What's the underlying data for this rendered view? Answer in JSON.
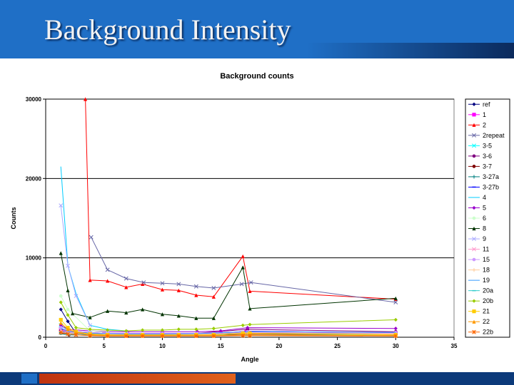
{
  "slide": {
    "title": "Background Intensity"
  },
  "chart_data": {
    "type": "line",
    "title": "Background counts",
    "xlabel": "Angle",
    "ylabel": "Counts",
    "xlim": [
      0,
      35
    ],
    "ylim": [
      0,
      30000
    ],
    "xticks": [
      0,
      5,
      10,
      15,
      20,
      25,
      30,
      35
    ],
    "yticks": [
      0,
      10000,
      20000,
      30000
    ],
    "grid": "horizontal",
    "legend_position": "right",
    "series": [
      {
        "name": "ref",
        "color": "#000080",
        "marker": "diamond",
        "x": [
          1.3,
          1.9,
          2.6
        ],
        "y": [
          3500,
          2000,
          500
        ]
      },
      {
        "name": "1",
        "color": "#ff00ff",
        "marker": "square",
        "x": [
          1.3,
          2,
          3.8,
          5,
          7,
          10,
          13,
          15,
          17.2,
          30
        ],
        "y": [
          1000,
          700,
          600,
          500,
          450,
          450,
          450,
          500,
          750,
          550
        ]
      },
      {
        "name": "2",
        "color": "#ff0000",
        "marker": "triangle",
        "x": [
          3.4,
          3.8,
          5.3,
          6.9,
          8.3,
          10,
          11.4,
          12.9,
          14.4,
          16.9,
          17.5,
          30
        ],
        "y": [
          30000,
          7200,
          7100,
          6300,
          6700,
          6000,
          5900,
          5300,
          5100,
          10200,
          5800,
          4800
        ]
      },
      {
        "name": "2repeat",
        "color": "#6666a6",
        "marker": "x",
        "x": [
          3.9,
          5.3,
          6.9,
          8.4,
          10,
          11.4,
          12.9,
          14.4,
          16.8,
          17.6,
          30
        ],
        "y": [
          12600,
          8500,
          7400,
          6900,
          6800,
          6700,
          6400,
          6200,
          6700,
          6900,
          4400
        ]
      },
      {
        "name": "3-5",
        "color": "#00ffff",
        "marker": "x",
        "x": [
          1.3,
          1.9,
          2.6,
          3.8,
          5.3
        ],
        "y": [
          1500,
          900,
          700,
          500,
          400
        ]
      },
      {
        "name": "3-6",
        "color": "#800080",
        "marker": "circle",
        "x": [
          1.3,
          2,
          3.8,
          5.3,
          7,
          10,
          13,
          17.3,
          30
        ],
        "y": [
          1000,
          800,
          600,
          500,
          400,
          400,
          500,
          1000,
          700
        ]
      },
      {
        "name": "3-7",
        "color": "#800000",
        "marker": "circle",
        "x": [
          1.3,
          2,
          3.8,
          5.3,
          7,
          10,
          13,
          17.3,
          30
        ],
        "y": [
          500,
          300,
          250,
          200,
          200,
          200,
          250,
          400,
          300
        ]
      },
      {
        "name": "3-27a",
        "color": "#008080",
        "marker": "plus",
        "x": [
          1.3,
          2,
          3.8,
          5.3,
          7,
          10,
          13,
          17.3,
          30
        ],
        "y": [
          600,
          450,
          350,
          300,
          300,
          300,
          350,
          500,
          400
        ]
      },
      {
        "name": "3-27b",
        "color": "#0000ff",
        "marker": "dash",
        "x": [
          1.3,
          2,
          3.8,
          5.3,
          7,
          10,
          13,
          15,
          17.3,
          30
        ],
        "y": [
          800,
          500,
          400,
          350,
          350,
          350,
          400,
          500,
          750,
          550
        ]
      },
      {
        "name": "4",
        "color": "#00ccff",
        "marker": "none",
        "x": [
          1.3,
          1.9,
          2.6,
          3.8,
          5.3,
          6.9
        ],
        "y": [
          21500,
          9000,
          5500,
          1500,
          1000,
          800
        ]
      },
      {
        "name": "5",
        "color": "#9900cc",
        "marker": "diamond",
        "x": [
          1.3,
          1.9,
          3.8,
          5.3,
          7,
          10,
          13,
          15,
          17.3,
          30
        ],
        "y": [
          1500,
          1000,
          800,
          700,
          700,
          700,
          700,
          800,
          1200,
          1100
        ]
      },
      {
        "name": "6",
        "color": "#ccffcc",
        "marker": "circle",
        "x": [
          1.3,
          1.9,
          3.8,
          5.3
        ],
        "y": [
          5200,
          3500,
          800,
          600
        ]
      },
      {
        "name": "8",
        "color": "#003300",
        "marker": "triangle",
        "x": [
          1.3,
          1.9,
          2.3,
          3.8,
          5.3,
          6.9,
          8.3,
          10,
          11.4,
          12.9,
          14.4,
          16.9,
          17.5,
          30
        ],
        "y": [
          10600,
          5900,
          3000,
          2500,
          3300,
          3100,
          3500,
          2900,
          2700,
          2400,
          2400,
          8800,
          3600,
          4900
        ]
      },
      {
        "name": "9",
        "color": "#aaaaff",
        "marker": "x",
        "x": [
          1.3,
          1.9,
          2.6,
          3.8
        ],
        "y": [
          16600,
          9000,
          5200,
          1500
        ]
      },
      {
        "name": "11",
        "color": "#ff99cc",
        "marker": "x",
        "x": [
          1.3,
          2,
          3.8,
          5.3,
          7,
          10,
          13,
          17.3,
          30
        ],
        "y": [
          900,
          600,
          450,
          400,
          350,
          350,
          400,
          600,
          500
        ]
      },
      {
        "name": "15",
        "color": "#cc99ff",
        "marker": "circle",
        "x": [
          1.3,
          2,
          3.8,
          5.3,
          7,
          10,
          13,
          17.3,
          30
        ],
        "y": [
          1200,
          800,
          600,
          500,
          500,
          500,
          500,
          700,
          600
        ]
      },
      {
        "name": "18",
        "color": "#ffcc99",
        "marker": "plus",
        "x": [
          1.3,
          2,
          3.8,
          5.3,
          7,
          10,
          13,
          17.3,
          30
        ],
        "y": [
          700,
          500,
          400,
          350,
          300,
          300,
          350,
          450,
          400
        ]
      },
      {
        "name": "19",
        "color": "#3399ff",
        "marker": "none",
        "x": [
          1.3,
          2,
          3.8,
          5.3,
          7,
          10,
          13,
          17.3,
          30
        ],
        "y": [
          1100,
          700,
          500,
          450,
          400,
          400,
          450,
          700,
          600
        ]
      },
      {
        "name": "20a",
        "color": "#33cccc",
        "marker": "dash",
        "x": [
          1.3,
          2,
          3.8,
          5.3,
          7,
          10,
          13,
          17.3,
          30
        ],
        "y": [
          400,
          300,
          250,
          200,
          200,
          200,
          250,
          300,
          300
        ]
      },
      {
        "name": "20b",
        "color": "#99cc00",
        "marker": "diamond",
        "x": [
          1.3,
          1.9,
          2.6,
          3.8,
          5.3,
          6.9,
          8.3,
          10,
          11.4,
          12.9,
          14.4,
          16.9,
          17.5,
          30
        ],
        "y": [
          4400,
          2800,
          1200,
          1000,
          900,
          800,
          900,
          900,
          1000,
          1000,
          1100,
          1500,
          1600,
          2200
        ]
      },
      {
        "name": "21",
        "color": "#ffcc00",
        "marker": "square",
        "x": [
          1.3,
          1.9,
          2.6,
          3.8,
          5.3,
          6.9,
          8.3,
          10,
          11.4,
          12.9,
          14.4,
          16.9,
          17.5,
          30
        ],
        "y": [
          2200,
          1200,
          700,
          400,
          300,
          300,
          300,
          300,
          300,
          300,
          300,
          500,
          500,
          300
        ]
      },
      {
        "name": "22",
        "color": "#ff9900",
        "marker": "triangle",
        "x": [
          1.3,
          1.9,
          2.6,
          3.8,
          5.3,
          6.9,
          8.3,
          10,
          11.4,
          12.9,
          14.4,
          16.9,
          17.5,
          30
        ],
        "y": [
          1800,
          1000,
          600,
          300,
          200,
          200,
          200,
          200,
          200,
          200,
          200,
          300,
          300,
          200
        ]
      },
      {
        "name": "22b",
        "color": "#ff6600",
        "marker": "asterisk",
        "x": [
          1.3,
          1.9,
          2.6,
          3.8,
          5.3,
          6.9,
          8.3,
          10,
          11.4,
          12.9,
          14.4,
          16.9,
          17.5,
          30
        ],
        "y": [
          600,
          400,
          300,
          200,
          150,
          150,
          150,
          150,
          150,
          150,
          150,
          200,
          200,
          150
        ]
      }
    ]
  }
}
